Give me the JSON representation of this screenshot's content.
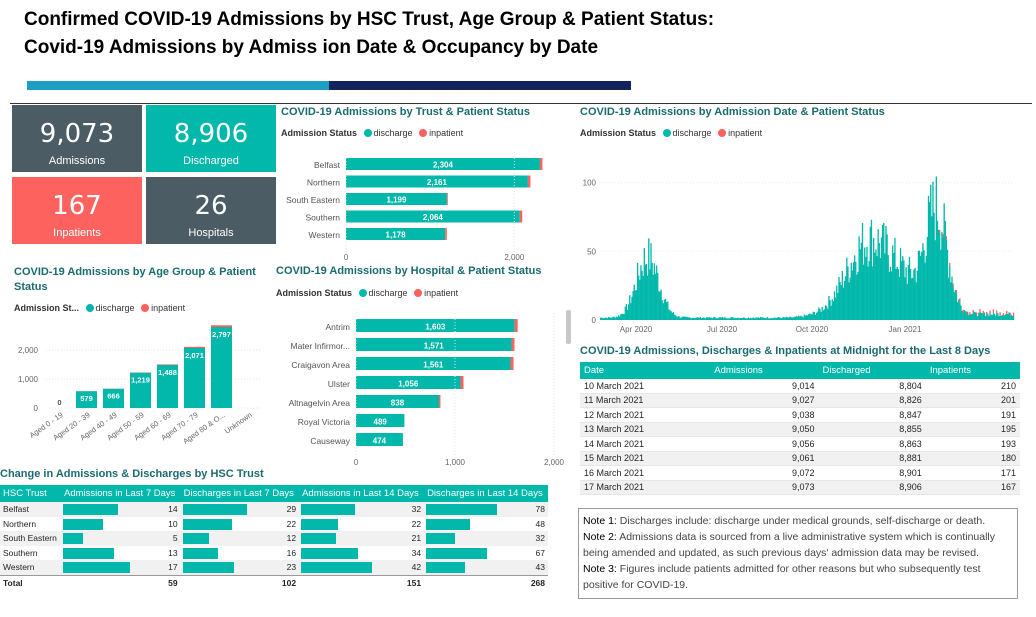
{
  "header": {
    "line1": "Confirmed  COVID-19  Admissions  by  HSC  Trust,  Age  Group  &  Patient  Status:",
    "line2": "Covid-19  Admissions  by  Admiss ion  Date  &  Occupancy  by  Date"
  },
  "colors": {
    "teal": "#01b8aa",
    "red": "#fd625e",
    "dark": "#4b5c64"
  },
  "cards": {
    "admissions": {
      "value": "9,073",
      "label": "Admissions"
    },
    "discharged": {
      "value": "8,906",
      "label": "Discharged"
    },
    "inpatients": {
      "value": "167",
      "label": "Inpatients"
    },
    "hospitals": {
      "value": "26",
      "label": "Hospitals"
    }
  },
  "legend": {
    "title": "Admission Status",
    "title_short": "Admission St...",
    "discharge": "discharge",
    "inpatient": "inpatient"
  },
  "trust_chart": {
    "title": "COVID-19 Admissions by Trust & Patient Status",
    "chart_data": {
      "type": "bar",
      "categories": [
        "Belfast",
        "Northern",
        "South Eastern",
        "Southern",
        "Western"
      ],
      "series": [
        {
          "name": "discharge",
          "values": [
            2304,
            2161,
            1199,
            2064,
            1178
          ]
        },
        {
          "name": "inpatient",
          "values": [
            30,
            30,
            10,
            30,
            20
          ]
        }
      ],
      "labels": [
        "2,304",
        "2,161",
        "1,199",
        "2,064",
        "1,178"
      ],
      "ticks": [
        "0",
        "2,000"
      ],
      "xlim": [
        0,
        2400
      ]
    }
  },
  "age_chart": {
    "title": "COVID-19 Admissions by Age Group & Patient Status",
    "chart_data": {
      "type": "bar",
      "categories": [
        "Aged 0 - 19",
        "Aged 20 - 39",
        "Aged 40 - 49",
        "Aged 50 - 59",
        "Aged 60 - 69",
        "Aged 70 - 79",
        "Aged 80 & O...",
        "Unknown"
      ],
      "series": [
        {
          "name": "discharge",
          "values": [
            0,
            579,
            666,
            1219,
            1488,
            2071,
            2797,
            0
          ]
        },
        {
          "name": "inpatient",
          "values": [
            0,
            5,
            5,
            10,
            20,
            40,
            60,
            0
          ]
        }
      ],
      "labels": [
        "0",
        "579",
        "666",
        "1,219",
        "1,488",
        "2,071",
        "2,797",
        ""
      ],
      "ticks": [
        "0",
        "1,000",
        "2,000"
      ],
      "ylim": [
        0,
        2900
      ]
    }
  },
  "hospital_chart": {
    "title": "COVID-19 Admissions by Hospital & Patient Status",
    "chart_data": {
      "type": "bar",
      "categories": [
        "Antrim",
        "Mater Infirmor...",
        "Craigavon Area",
        "Ulster",
        "Altnagelvin Area",
        "Royal Victoria",
        "Causeway"
      ],
      "series": [
        {
          "name": "discharge",
          "values": [
            1603,
            1571,
            1561,
            1056,
            838,
            489,
            474
          ]
        },
        {
          "name": "inpatient",
          "values": [
            30,
            30,
            30,
            30,
            15,
            0,
            0
          ]
        }
      ],
      "labels": [
        "1,603",
        "1,571",
        "1,561",
        "1,056",
        "838",
        "489",
        "474"
      ],
      "ticks": [
        "0",
        "1,000",
        "2,000"
      ],
      "xlim": [
        0,
        2000
      ]
    }
  },
  "date_chart": {
    "title": "COVID-19 Admissions by Admission Date & Patient Status",
    "chart_data": {
      "type": "bar",
      "x_ticks": [
        "Apr 2020",
        "Jul 2020",
        "Oct 2020",
        "Jan 2021"
      ],
      "y_ticks": [
        "0",
        "50",
        "100"
      ],
      "ylim": [
        0,
        115
      ],
      "series_note": "daily admissions March 2020 - March 2021",
      "peaks": [
        {
          "period": "Apr 2020",
          "approx": 60
        },
        {
          "period": "Nov 2020",
          "approx": 85
        },
        {
          "period": "Jan 2021",
          "approx": 110
        }
      ]
    }
  },
  "occupancy": {
    "title": "COVID-19 Admissions, Discharges & Inpatients at Midnight for the Last 8 Days",
    "columns": [
      "Date",
      "Admissions",
      "Discharged",
      "Inpatients"
    ],
    "rows": [
      [
        "10 March 2021",
        "9,014",
        "8,804",
        "210"
      ],
      [
        "11 March 2021",
        "9,027",
        "8,826",
        "201"
      ],
      [
        "12 March 2021",
        "9,038",
        "8,847",
        "191"
      ],
      [
        "13 March 2021",
        "9,050",
        "8,855",
        "195"
      ],
      [
        "14 March 2021",
        "9,056",
        "8,863",
        "193"
      ],
      [
        "15 March 2021",
        "9,061",
        "8,881",
        "180"
      ],
      [
        "16 March 2021",
        "9,072",
        "8,901",
        "171"
      ],
      [
        "17 March 2021",
        "9,073",
        "8,906",
        "167"
      ]
    ]
  },
  "trust_table": {
    "title": "Change in Admissions & Discharges by HSC Trust",
    "columns": [
      "HSC Trust",
      "Admissions in Last 7 Days",
      "Discharges in Last 7 Days",
      "Admissions in Last 14 Days",
      "Discharges in Last 14 Days"
    ],
    "rows": [
      {
        "name": "Belfast",
        "v": [
          "14",
          "29",
          "32",
          "78"
        ],
        "n": [
          14,
          29,
          32,
          78
        ]
      },
      {
        "name": "Northern",
        "v": [
          "10",
          "22",
          "22",
          "48"
        ],
        "n": [
          10,
          22,
          22,
          48
        ]
      },
      {
        "name": "South Eastern",
        "v": [
          "5",
          "12",
          "21",
          "32"
        ],
        "n": [
          5,
          12,
          21,
          32
        ]
      },
      {
        "name": "Southern",
        "v": [
          "13",
          "16",
          "34",
          "67"
        ],
        "n": [
          13,
          16,
          34,
          67
        ]
      },
      {
        "name": "Western",
        "v": [
          "17",
          "23",
          "42",
          "43"
        ],
        "n": [
          17,
          23,
          42,
          43
        ]
      }
    ],
    "total": {
      "name": "Total",
      "v": [
        "59",
        "102",
        "151",
        "268"
      ]
    },
    "max": [
      17,
      29,
      42,
      78
    ]
  },
  "notes": {
    "n1_label": "Note 1:",
    "n1": " Discharges include: discharge under medical grounds, self-discharge or death.",
    "n2_label": "Note 2:",
    "n2": " Admissions data is sourced from a live administrative system which is continually being amended and updated, as such previous days' admission data may be revised.",
    "n3_label": "Note 3:",
    "n3": " Figures include patients admitted for other reasons but who subsequently test positive for COVID-19."
  }
}
